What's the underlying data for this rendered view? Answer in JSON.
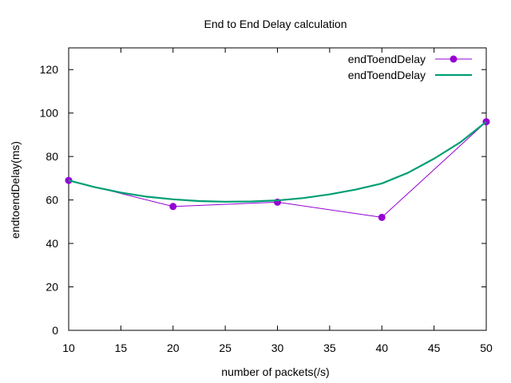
{
  "chart_data": {
    "type": "line",
    "title": "End to End Delay calculation",
    "xlabel": "number of packets(/s)",
    "ylabel": "endtoendDelay(ms)",
    "xlim": [
      10,
      50
    ],
    "ylim": [
      0,
      130
    ],
    "xticks": [
      10,
      15,
      20,
      25,
      30,
      35,
      40,
      45,
      50
    ],
    "yticks": [
      0,
      20,
      40,
      60,
      80,
      100,
      120
    ],
    "grid": false,
    "legend_position": "top-right",
    "series": [
      {
        "name": "endToendDelay",
        "style": "line+points",
        "color": "#9400d3",
        "x": [
          10,
          20,
          30,
          40,
          50
        ],
        "y": [
          69,
          57,
          59,
          52,
          96
        ]
      },
      {
        "name": "endToendDelay",
        "style": "smooth-line",
        "color": "#009e73",
        "x": [
          10,
          12.5,
          15,
          17.5,
          20,
          22.5,
          25,
          27.5,
          30,
          32.5,
          35,
          37.5,
          40,
          42.5,
          45,
          47.5,
          50
        ],
        "y": [
          69,
          65.9,
          63.4,
          61.5,
          60.3,
          59.5,
          59.2,
          59.3,
          59.8,
          60.9,
          62.6,
          64.8,
          67.6,
          72.5,
          79,
          86.5,
          96
        ]
      }
    ]
  }
}
